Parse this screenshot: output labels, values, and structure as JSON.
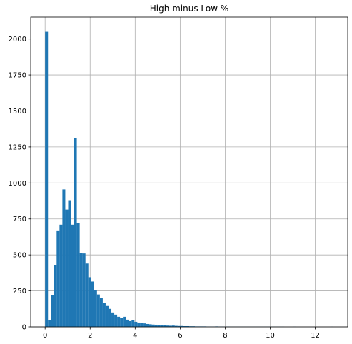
{
  "chart_data": {
    "type": "bar",
    "title": "High minus Low %",
    "xlabel": "",
    "ylabel": "",
    "xlim": [
      -0.64,
      13.44
    ],
    "ylim": [
      0,
      2152
    ],
    "grid": true,
    "bar_color": "#1f77b4",
    "bin_width": 0.128,
    "bin_start": 0.0,
    "x_ticks": [
      0,
      2,
      4,
      6,
      8,
      10,
      12
    ],
    "y_ticks": [
      0,
      250,
      500,
      750,
      1000,
      1250,
      1500,
      1750,
      2000
    ],
    "counts": [
      2050,
      45,
      220,
      430,
      670,
      710,
      955,
      815,
      880,
      710,
      1310,
      720,
      515,
      510,
      440,
      345,
      315,
      255,
      225,
      200,
      165,
      145,
      125,
      100,
      85,
      70,
      60,
      70,
      50,
      40,
      45,
      35,
      30,
      28,
      24,
      20,
      18,
      16,
      15,
      13,
      12,
      10,
      9,
      8,
      9,
      7,
      6,
      6,
      5,
      5,
      4,
      4,
      3,
      3,
      3,
      3,
      2,
      2,
      2,
      3,
      2,
      2,
      1,
      2,
      1,
      1,
      1,
      1,
      1,
      1,
      1,
      1,
      1,
      1,
      1,
      1,
      1,
      1,
      1,
      1,
      1,
      1,
      1,
      0,
      0,
      0,
      1,
      0,
      0,
      0,
      0,
      0,
      0,
      0,
      0,
      0,
      0,
      0,
      0,
      1
    ]
  }
}
